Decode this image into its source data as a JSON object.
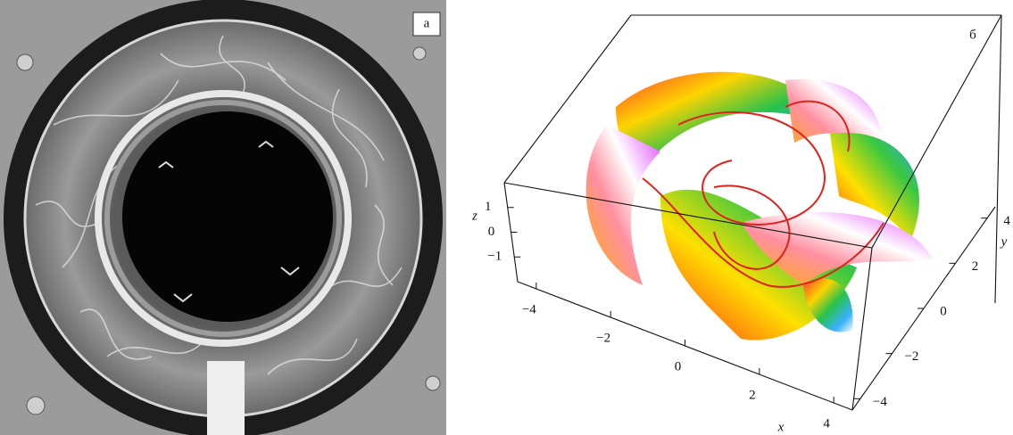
{
  "panel_a": {
    "label": "а"
  },
  "panel_b": {
    "label": "б",
    "axes": {
      "x": {
        "label": "x",
        "lim": [
          -4.5,
          4.5
        ],
        "ticks": [
          {
            "value": -4,
            "label": "−4"
          },
          {
            "value": -2,
            "label": "−2"
          },
          0,
          2,
          4
        ]
      },
      "y": {
        "label": "y",
        "lim": [
          -4.5,
          4.5
        ],
        "ticks": [
          {
            "value": -4,
            "label": "−4"
          },
          {
            "value": -2,
            "label": "−2"
          },
          0,
          2,
          4
        ]
      },
      "z": {
        "label": "z",
        "lim": [
          -2,
          2
        ],
        "ticks": [
          {
            "value": -1,
            "label": "−1"
          },
          0,
          1
        ]
      }
    }
  }
}
